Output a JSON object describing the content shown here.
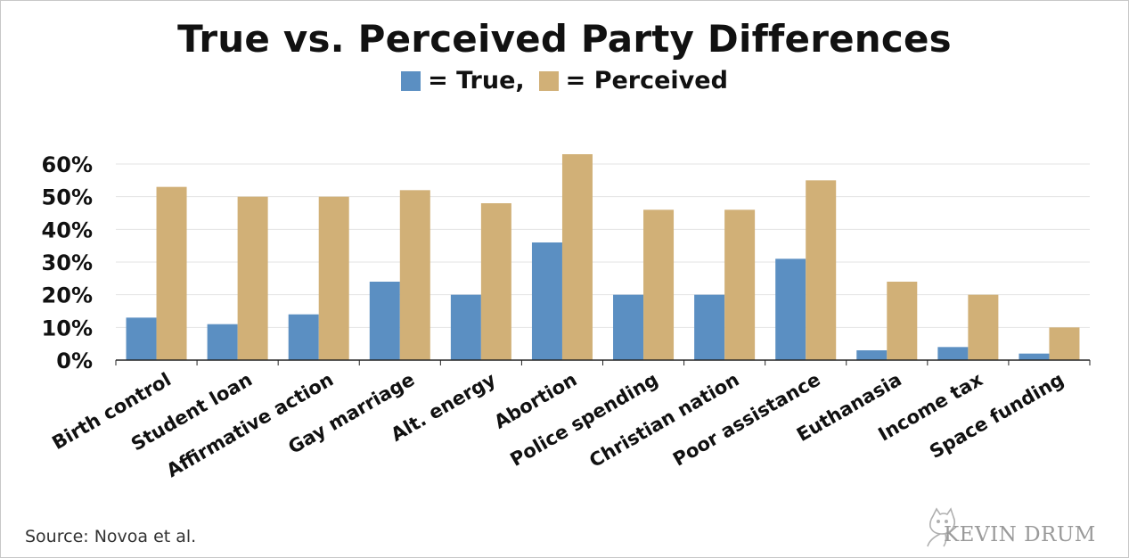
{
  "chart_data": {
    "type": "bar",
    "title": "True vs. Perceived Party Differences",
    "legend": {
      "placement": "top-center",
      "entries": [
        {
          "label": "= True,",
          "color": "#5b8fc2"
        },
        {
          "label": "= Perceived",
          "color": "#d1b077"
        }
      ]
    },
    "categories": [
      "Birth control",
      "Student loan",
      "Affirmative action",
      "Gay marriage",
      "Alt. energy",
      "Abortion",
      "Police spending",
      "Christian nation",
      "Poor assistance",
      "Euthanasia",
      "Income tax",
      "Space funding"
    ],
    "series": [
      {
        "name": "True",
        "color": "#5b8fc2",
        "values": [
          13,
          11,
          14,
          24,
          20,
          36,
          20,
          20,
          31,
          3,
          4,
          2
        ]
      },
      {
        "name": "Perceived",
        "color": "#d1b077",
        "values": [
          53,
          50,
          50,
          52,
          48,
          63,
          46,
          46,
          55,
          24,
          20,
          10
        ]
      }
    ],
    "ylim": [
      0,
      60
    ],
    "yticks": [
      0,
      10,
      20,
      30,
      40,
      50,
      60
    ],
    "ytick_labels": [
      "0%",
      "10%",
      "20%",
      "30%",
      "40%",
      "50%",
      "60%"
    ],
    "grid": true,
    "xlabel": "",
    "ylabel": ""
  },
  "source": "Source: Novoa et al.",
  "watermark": "KEVIN DRUM"
}
